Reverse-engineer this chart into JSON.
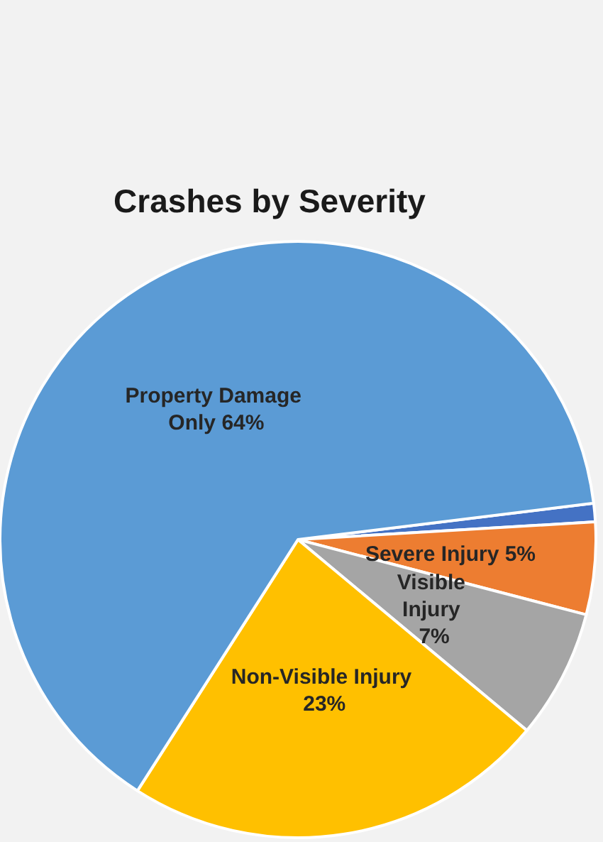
{
  "chart_data": {
    "type": "pie",
    "title": "Crashes by Severity",
    "categories": [
      null,
      "Severe Injury",
      "Visible Injury",
      "Non-Visible Injury",
      "Property Damage Only"
    ],
    "values": [
      1,
      5,
      7,
      23,
      64
    ],
    "value_labels": [
      null,
      "5%",
      "7%",
      "23%",
      "64%"
    ],
    "colors": [
      "#4472c4",
      "#ed7d31",
      "#a5a5a5",
      "#ffc000",
      "#5b9bd5"
    ],
    "legend": false
  }
}
